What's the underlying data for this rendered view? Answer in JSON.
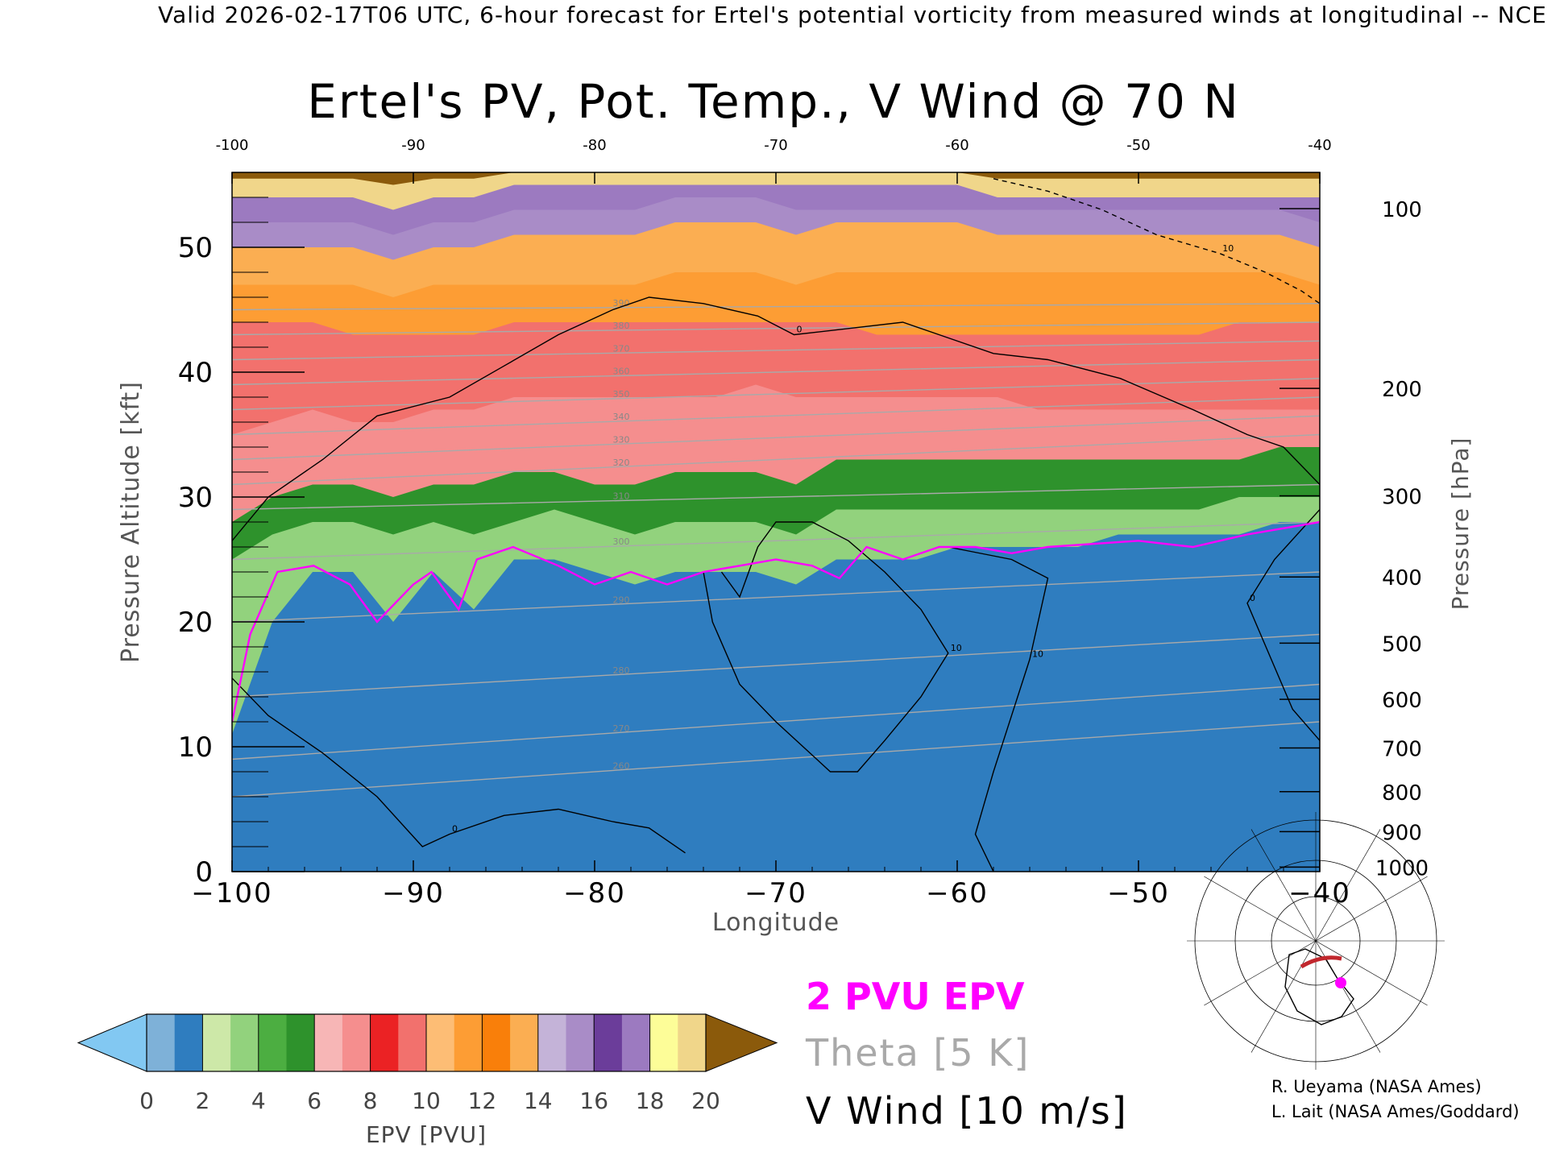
{
  "header": {
    "caption": "Valid 2026-02-17T06 UTC, 6-hour forecast for Ertel's potential vorticity from measured winds at longitudinal -- NCE",
    "title": "Ertel's PV, Pot. Temp., V Wind @ 70 N"
  },
  "chart_data": {
    "type": "heatmap",
    "title": "Ertel's PV, Pot. Temp., V Wind @ 70 N",
    "xlabel": "Longitude",
    "ylabel": "Pressure Altitude [kft]",
    "y2label": "Pressure [hPa]",
    "xlim": [
      -100,
      -40
    ],
    "ylim": [
      0,
      56
    ],
    "x_ticks": [
      -100,
      -90,
      -80,
      -70,
      -60,
      -50,
      -40
    ],
    "x_tick_labels": [
      "−100",
      "−90",
      "−80",
      "−70",
      "−60",
      "−50",
      "−40"
    ],
    "x_top_tick_labels": [
      "-100",
      "-90",
      "-80",
      "-70",
      "-60",
      "-50",
      "-40"
    ],
    "y_ticks": [
      0,
      10,
      20,
      30,
      40,
      50
    ],
    "pressure_ticks": [
      {
        "hpa": 100,
        "kft": 53.1
      },
      {
        "hpa": 200,
        "kft": 38.7
      },
      {
        "hpa": 300,
        "kft": 30.1
      },
      {
        "hpa": 400,
        "kft": 23.6
      },
      {
        "hpa": 500,
        "kft": 18.3
      },
      {
        "hpa": 600,
        "kft": 13.8
      },
      {
        "hpa": 700,
        "kft": 9.9
      },
      {
        "hpa": 800,
        "kft": 6.4
      },
      {
        "hpa": 900,
        "kft": 3.2
      },
      {
        "hpa": 1000,
        "kft": 0.36
      }
    ],
    "pv_bands": [
      {
        "epv": 1,
        "top": [
          11,
          20,
          24,
          24,
          20,
          24,
          21,
          25,
          25,
          24,
          23,
          24,
          24,
          24,
          23,
          25,
          25,
          25,
          26,
          26,
          26,
          26,
          27,
          27,
          27,
          27,
          28,
          28
        ]
      },
      {
        "epv": 3,
        "top": [
          25,
          27,
          28,
          28,
          27,
          28,
          27,
          28,
          29,
          28,
          27,
          28,
          28,
          28,
          27,
          29,
          29,
          29,
          29,
          29,
          29,
          29,
          29,
          29,
          29,
          30,
          30,
          30
        ]
      },
      {
        "epv": 5,
        "top": [
          28,
          30,
          31,
          31,
          30,
          31,
          31,
          32,
          32,
          31,
          31,
          32,
          32,
          32,
          31,
          33,
          33,
          33,
          33,
          33,
          33,
          33,
          33,
          33,
          33,
          33,
          34,
          34
        ]
      },
      {
        "epv": 7,
        "top": [
          35,
          36,
          37,
          36,
          36,
          37,
          37,
          38,
          38,
          38,
          38,
          38,
          38,
          39,
          38,
          38,
          38,
          38,
          38,
          38,
          37,
          37,
          37,
          37,
          37,
          37,
          37,
          37
        ]
      },
      {
        "epv": 9,
        "top": [
          44,
          44,
          44,
          43,
          43,
          43,
          43,
          44,
          44,
          44,
          44,
          44,
          44,
          44,
          44,
          44,
          43,
          43,
          43,
          43,
          43,
          43,
          43,
          43,
          43,
          44,
          44,
          44
        ]
      },
      {
        "epv": 11,
        "top": [
          47,
          47,
          47,
          47,
          46,
          47,
          47,
          47,
          47,
          47,
          47,
          48,
          48,
          48,
          47,
          48,
          48,
          48,
          48,
          48,
          48,
          48,
          48,
          48,
          48,
          48,
          48,
          47
        ]
      },
      {
        "epv": 13,
        "top": [
          50,
          50,
          50,
          50,
          49,
          50,
          50,
          51,
          51,
          51,
          51,
          52,
          52,
          52,
          51,
          52,
          52,
          52,
          52,
          51,
          51,
          51,
          51,
          51,
          51,
          51,
          51,
          50
        ]
      },
      {
        "epv": 15,
        "top": [
          52,
          52,
          52,
          52,
          51,
          52,
          52,
          53,
          53,
          53,
          53,
          54,
          54,
          54,
          53,
          53,
          53,
          53,
          53,
          53,
          53,
          53,
          53,
          53,
          53,
          53,
          53,
          52
        ]
      },
      {
        "epv": 17,
        "top": [
          54,
          54,
          54,
          54,
          53,
          54,
          54,
          55,
          55,
          55,
          55,
          55,
          55,
          55,
          55,
          55,
          55,
          55,
          55,
          54,
          54,
          54,
          54,
          54,
          54,
          54,
          54,
          54
        ]
      },
      {
        "epv": 19,
        "top": [
          55.5,
          55.5,
          55.5,
          55.5,
          55,
          55.5,
          55.5,
          56,
          56,
          56,
          56,
          56,
          56,
          56,
          56,
          56,
          56,
          56,
          56,
          55.5,
          55.5,
          55.5,
          55.5,
          55.5,
          55.5,
          55.5,
          55.5,
          55.5
        ]
      }
    ],
    "pv_2_contour": [
      [
        -100,
        12
      ],
      [
        -99,
        19
      ],
      [
        -97.5,
        24
      ],
      [
        -95.5,
        24.5
      ],
      [
        -93.5,
        23
      ],
      [
        -92,
        20
      ],
      [
        -90,
        23
      ],
      [
        -89,
        24
      ],
      [
        -87.5,
        21
      ],
      [
        -86.5,
        25
      ],
      [
        -84.5,
        26
      ],
      [
        -82,
        24.5
      ],
      [
        -80,
        23
      ],
      [
        -78,
        24
      ],
      [
        -76,
        23
      ],
      [
        -74,
        24
      ],
      [
        -72,
        24.5
      ],
      [
        -70,
        25
      ],
      [
        -68,
        24.5
      ],
      [
        -66.5,
        23.5
      ],
      [
        -65,
        26
      ],
      [
        -63,
        25
      ],
      [
        -61,
        26
      ],
      [
        -59,
        26
      ],
      [
        -57,
        25.5
      ],
      [
        -55,
        26
      ],
      [
        -50,
        26.5
      ],
      [
        -47,
        26
      ],
      [
        -44,
        27
      ],
      [
        -42,
        27.5
      ],
      [
        -40,
        28
      ]
    ],
    "theta_isotherms": [
      {
        "label": "260",
        "y_left": 6,
        "y_right": 12
      },
      {
        "label": "270",
        "y_left": 9,
        "y_right": 15
      },
      {
        "label": "280",
        "y_left": 14,
        "y_right": 19
      },
      {
        "label": "290",
        "y_left": 20,
        "y_right": 24
      },
      {
        "label": "300",
        "y_left": 25,
        "y_right": 28
      },
      {
        "label": "310",
        "y_left": 29,
        "y_right": 31
      },
      {
        "label": "320",
        "y_left": 31,
        "y_right": 35
      },
      {
        "label": "330",
        "y_left": 33,
        "y_right": 36.5
      },
      {
        "label": "340",
        "y_left": 35,
        "y_right": 38
      },
      {
        "label": "350",
        "y_left": 37,
        "y_right": 39.5
      },
      {
        "label": "360",
        "y_left": 39,
        "y_right": 41
      },
      {
        "label": "370",
        "y_left": 41,
        "y_right": 42.5
      },
      {
        "label": "380",
        "y_left": 43,
        "y_right": 44
      },
      {
        "label": "390",
        "y_left": 45,
        "y_right": 45.5
      }
    ],
    "v_wind_contours": [
      {
        "label": "0",
        "style": "solid",
        "points": [
          [
            -100,
            26.5
          ],
          [
            -98,
            30
          ],
          [
            -95,
            33
          ],
          [
            -92,
            36.5
          ],
          [
            -88,
            38
          ],
          [
            -85,
            40.5
          ],
          [
            -82,
            43
          ],
          [
            -79,
            45
          ],
          [
            -77,
            46
          ],
          [
            -74,
            45.5
          ],
          [
            -71,
            44.5
          ],
          [
            -69,
            43
          ],
          [
            -66,
            43.5
          ],
          [
            -63,
            44
          ],
          [
            -61,
            43
          ],
          [
            -58,
            41.5
          ],
          [
            -55,
            41
          ],
          [
            -51,
            39.5
          ],
          [
            -47,
            37
          ],
          [
            -44,
            35
          ],
          [
            -42,
            34
          ],
          [
            -40,
            31
          ]
        ]
      },
      {
        "label": "0",
        "style": "solid",
        "points": [
          [
            -100,
            15.5
          ],
          [
            -98,
            12.5
          ],
          [
            -95,
            9.5
          ],
          [
            -92,
            6
          ],
          [
            -89.5,
            2
          ],
          [
            -88,
            3
          ],
          [
            -85,
            4.5
          ],
          [
            -82,
            5
          ],
          [
            -79,
            4
          ],
          [
            -77,
            3.5
          ],
          [
            -75,
            1.5
          ]
        ]
      },
      {
        "label": "10",
        "style": "solid",
        "points": [
          [
            -74,
            24
          ],
          [
            -73.5,
            20
          ],
          [
            -72,
            15
          ],
          [
            -70,
            12
          ],
          [
            -67,
            8
          ],
          [
            -65.5,
            8
          ],
          [
            -64,
            10.5
          ],
          [
            -62,
            14
          ],
          [
            -60.5,
            17.5
          ],
          [
            -62,
            21
          ],
          [
            -64,
            24
          ],
          [
            -66,
            26.5
          ],
          [
            -68,
            28
          ],
          [
            -70,
            28
          ],
          [
            -71,
            26
          ],
          [
            -72,
            22
          ],
          [
            -73,
            24
          ]
        ]
      },
      {
        "label": "10",
        "style": "solid",
        "points": [
          [
            -60.5,
            26
          ],
          [
            -57,
            25
          ],
          [
            -55,
            23.5
          ],
          [
            -56,
            17
          ],
          [
            -58,
            8
          ],
          [
            -59,
            3
          ],
          [
            -58,
            0
          ]
        ]
      },
      {
        "label": "0",
        "style": "solid",
        "points": [
          [
            -40,
            29
          ],
          [
            -42.5,
            25
          ],
          [
            -44,
            21.5
          ],
          [
            -41.5,
            13
          ],
          [
            -40,
            10.5
          ]
        ]
      },
      {
        "label": "10",
        "style": "dashed",
        "points": [
          [
            -58,
            55.5
          ],
          [
            -55,
            54.5
          ],
          [
            -52,
            53
          ],
          [
            -49,
            51
          ],
          [
            -45.5,
            49.5
          ],
          [
            -43,
            48
          ],
          [
            -41,
            46.5
          ],
          [
            -40,
            45.5
          ]
        ]
      }
    ]
  },
  "colorbar": {
    "label": "EPV [PVU]",
    "tick_labels": [
      "0",
      "2",
      "4",
      "6",
      "8",
      "10",
      "12",
      "14",
      "16",
      "18",
      "20"
    ],
    "under_color": "#82c8f2",
    "over_color": "#8b5a0b",
    "colors": [
      "#7eb1d8",
      "#2f7dbf",
      "#cde8a8",
      "#92d27d",
      "#4cae41",
      "#2e922c",
      "#f7b6b6",
      "#f58e8e",
      "#eb2224",
      "#f2716d",
      "#fdbd75",
      "#fd9d34",
      "#f97f0a",
      "#fbae52",
      "#c4b3d8",
      "#a98cc7",
      "#6b3d9a",
      "#9c7ac0",
      "#fdfd98",
      "#f0d68a"
    ]
  },
  "legend": {
    "pv2": "2 PVU EPV",
    "theta": "Theta [5 K]",
    "vwind": "V Wind [10 m/s]",
    "pv2_color": "#ff00ff",
    "theta_color": "#a9a9a9",
    "vwind_color": "#000000"
  },
  "credits": {
    "line1": "R. Ueyama (NASA Ames)",
    "line2": "L. Lait (NASA Ames/Goddard)"
  }
}
